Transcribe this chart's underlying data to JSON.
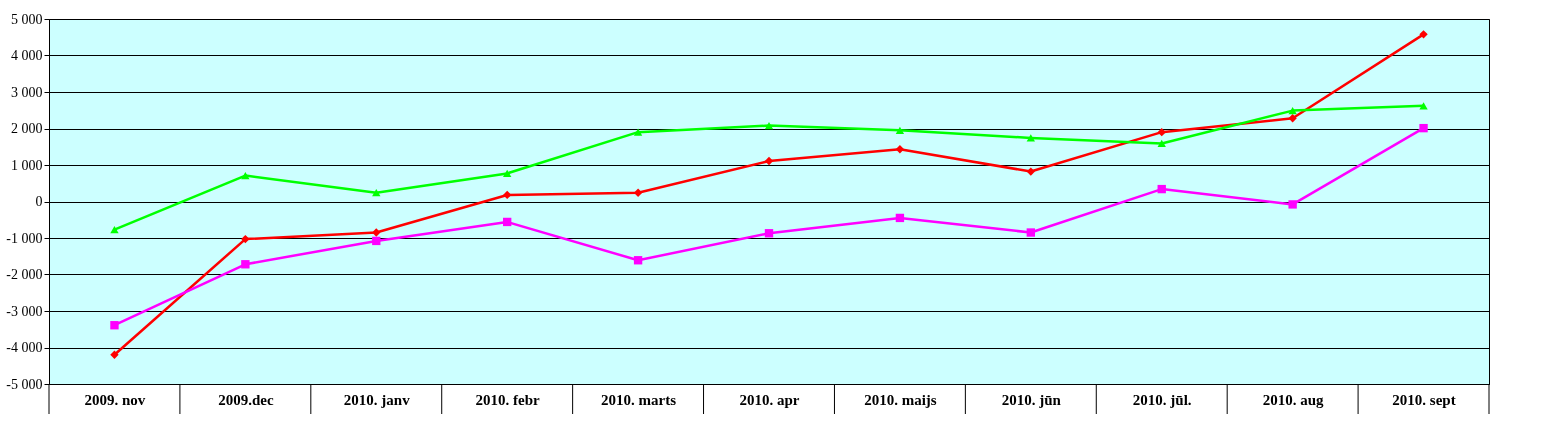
{
  "chart_data": {
    "type": "line",
    "categories": [
      "2009. nov",
      "2009.dec",
      "2010. janv",
      "2010. febr",
      "2010. marts",
      "2010. apr",
      "2010. maijs",
      "2010. jūn",
      "2010. jūl.",
      "2010. aug",
      "2010. sept"
    ],
    "series": [
      {
        "color": "#ff0000",
        "marker": "diamond",
        "values": [
          -4200,
          -1030,
          -850,
          180,
          240,
          1110,
          1430,
          820,
          1900,
          2280,
          4580
        ]
      },
      {
        "color": "#00ff00",
        "marker": "triangle",
        "values": [
          -770,
          710,
          240,
          770,
          1900,
          2080,
          1950,
          1740,
          1590,
          2490,
          2620
        ]
      },
      {
        "color": "#ff00ff",
        "marker": "square",
        "values": [
          -3390,
          -1720,
          -1080,
          -560,
          -1610,
          -870,
          -450,
          -850,
          340,
          -80,
          2010
        ]
      }
    ],
    "ylim": [
      -5000,
      5000
    ],
    "yticks": [
      {
        "value": -5000,
        "label": "-5 000"
      },
      {
        "value": -4000,
        "label": "-4 000"
      },
      {
        "value": -3000,
        "label": "-3 000"
      },
      {
        "value": -2000,
        "label": "-2 000"
      },
      {
        "value": -1000,
        "label": "-1 000"
      },
      0,
      {
        "value": 1000,
        "label": "1 000"
      },
      {
        "value": 2000,
        "label": "2 000"
      },
      {
        "value": 3000,
        "label": "3 000"
      },
      {
        "value": 4000,
        "label": "4 000"
      },
      {
        "value": 5000,
        "label": "5 000"
      }
    ],
    "grid": "y",
    "line_style": "solid"
  }
}
